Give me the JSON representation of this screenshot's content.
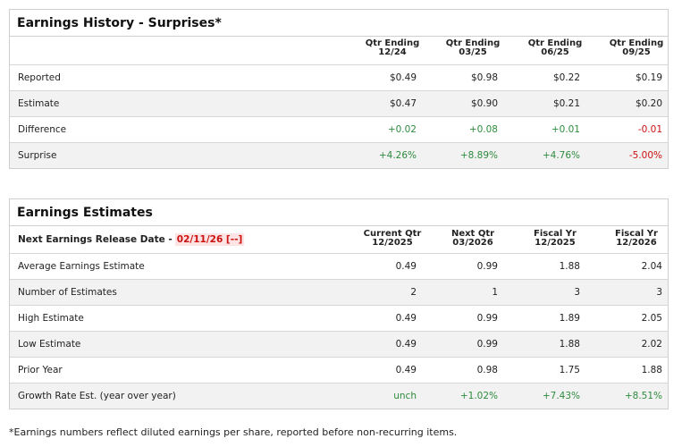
{
  "history": {
    "title": "Earnings History - Surprises*",
    "columns": [
      [
        "Qtr Ending",
        "12/24"
      ],
      [
        "Qtr Ending",
        "03/25"
      ],
      [
        "Qtr Ending",
        "06/25"
      ],
      [
        "Qtr Ending",
        "09/25"
      ]
    ],
    "rows": [
      {
        "label": "Reported",
        "values": [
          "$0.49",
          "$0.98",
          "$0.22",
          "$0.19"
        ]
      },
      {
        "label": "Estimate",
        "values": [
          "$0.47",
          "$0.90",
          "$0.21",
          "$0.20"
        ]
      },
      {
        "label": "Difference",
        "values": [
          "+0.02",
          "+0.08",
          "+0.01",
          "-0.01"
        ]
      },
      {
        "label": "Surprise",
        "values": [
          "+4.26%",
          "+8.89%",
          "+4.76%",
          "-5.00%"
        ]
      }
    ]
  },
  "estimates": {
    "title": "Earnings Estimates",
    "release_label": "Next Earnings Release Date -",
    "release_date": "02/11/26 [--]",
    "columns": [
      [
        "Current Qtr",
        "12/2025"
      ],
      [
        "Next Qtr",
        "03/2026"
      ],
      [
        "Fiscal Yr",
        "12/2025"
      ],
      [
        "Fiscal Yr",
        "12/2026"
      ]
    ],
    "rows": [
      {
        "label": "Average Earnings Estimate",
        "values": [
          "0.49",
          "0.99",
          "1.88",
          "2.04"
        ]
      },
      {
        "label": "Number of Estimates",
        "values": [
          "2",
          "1",
          "3",
          "3"
        ]
      },
      {
        "label": "High Estimate",
        "values": [
          "0.49",
          "0.99",
          "1.89",
          "2.05"
        ]
      },
      {
        "label": "Low Estimate",
        "values": [
          "0.49",
          "0.99",
          "1.88",
          "2.02"
        ]
      },
      {
        "label": "Prior Year",
        "values": [
          "0.49",
          "0.98",
          "1.75",
          "1.88"
        ]
      },
      {
        "label": "Growth Rate Est. (year over year)",
        "values": [
          "unch",
          "+1.02%",
          "+7.43%",
          "+8.51%"
        ]
      }
    ]
  },
  "footnote": "*Earnings numbers reflect diluted earnings per share, reported before non-recurring items."
}
